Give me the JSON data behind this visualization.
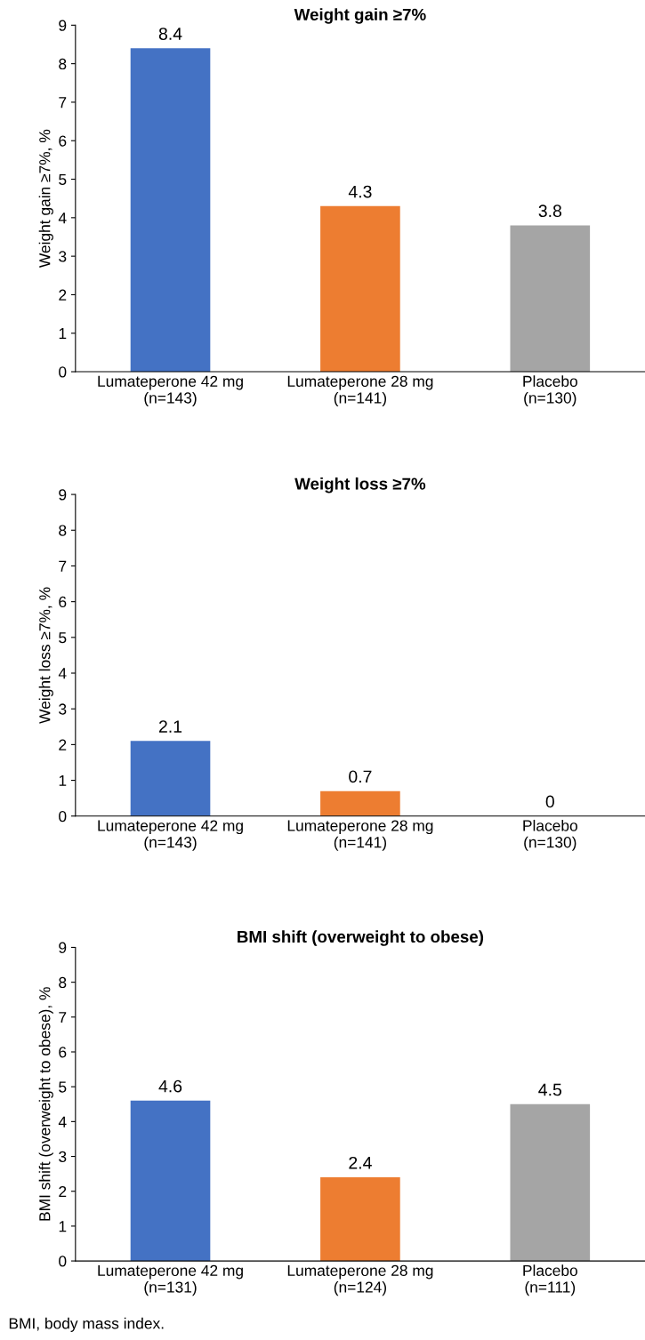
{
  "chart_data": [
    {
      "type": "bar",
      "title": "Weight gain ≥7%",
      "ylabel": "Weight gain ≥7%, %",
      "categories": [
        "Lumateperone 42 mg\n(n=143)",
        "Lumateperone 28 mg\n(n=141)",
        "Placebo\n(n=130)"
      ],
      "values": [
        8.4,
        4.3,
        3.8
      ],
      "colors": [
        "#4472c4",
        "#ed7d31",
        "#a5a5a5"
      ],
      "ylim": [
        0,
        9
      ],
      "yticks": [
        0,
        1,
        2,
        3,
        4,
        5,
        6,
        7,
        8,
        9
      ],
      "data_labels": true,
      "grid": false,
      "legend": false
    },
    {
      "type": "bar",
      "title": "Weight loss ≥7%",
      "ylabel": "Weight loss ≥7%, %",
      "categories": [
        "Lumateperone 42 mg\n(n=143)",
        "Lumateperone 28 mg\n(n=141)",
        "Placebo\n(n=130)"
      ],
      "values": [
        2.1,
        0.7,
        0
      ],
      "colors": [
        "#4472c4",
        "#ed7d31",
        "#a5a5a5"
      ],
      "ylim": [
        0,
        9
      ],
      "yticks": [
        0,
        1,
        2,
        3,
        4,
        5,
        6,
        7,
        8,
        9
      ],
      "data_labels": true,
      "grid": false,
      "legend": false
    },
    {
      "type": "bar",
      "title": "BMI shift (overweight to obese)",
      "ylabel": "BMI shift (overweight to obese), %",
      "categories": [
        "Lumateperone 42 mg\n(n=131)",
        "Lumateperone 28 mg\n(n=124)",
        "Placebo\n(n=111)"
      ],
      "values": [
        4.6,
        2.4,
        4.5
      ],
      "colors": [
        "#4472c4",
        "#ed7d31",
        "#a5a5a5"
      ],
      "ylim": [
        0,
        9
      ],
      "yticks": [
        0,
        1,
        2,
        3,
        4,
        5,
        6,
        7,
        8,
        9
      ],
      "data_labels": true,
      "grid": false,
      "legend": false,
      "annotations": [
        "BMI, body mass index."
      ]
    }
  ]
}
